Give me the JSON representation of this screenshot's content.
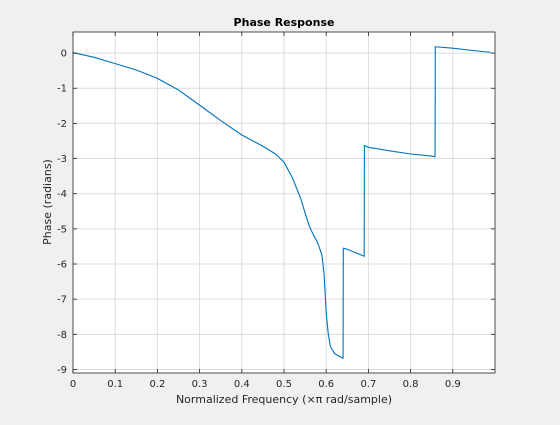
{
  "chart_data": {
    "type": "line",
    "title": "Phase Response",
    "xlabel": "Normalized Frequency (×π rad/sample)",
    "ylabel": "Phase (radians)",
    "xlim": [
      0,
      1
    ],
    "ylim": [
      -9.1,
      0.6
    ],
    "xticks": [
      0,
      0.1,
      0.2,
      0.3,
      0.4,
      0.5,
      0.6,
      0.7,
      0.8,
      0.9
    ],
    "xtick_labels": [
      "0",
      "0.1",
      "0.2",
      "0.3",
      "0.4",
      "0.5",
      "0.6",
      "0.7",
      "0.8",
      "0.9"
    ],
    "yticks": [
      0,
      -1,
      -2,
      -3,
      -4,
      -5,
      -6,
      -7,
      -8,
      -9
    ],
    "ytick_labels": [
      "0",
      "-1",
      "-2",
      "-3",
      "-4",
      "-5",
      "-6",
      "-7",
      "-8",
      "-9"
    ],
    "grid": true,
    "line_color": "#0072bd",
    "series": [
      {
        "x": [
          0,
          0.005,
          0.05,
          0.1,
          0.15,
          0.2,
          0.25,
          0.3,
          0.35,
          0.4,
          0.45,
          0.48,
          0.5,
          0.52,
          0.54,
          0.55,
          0.56,
          0.57,
          0.58,
          0.59,
          0.595,
          0.6,
          0.605,
          0.61,
          0.62,
          0.63,
          0.64,
          0.6405,
          0.65,
          0.66,
          0.67,
          0.68,
          0.69,
          0.6905,
          0.7,
          0.75,
          0.8,
          0.85,
          0.858,
          0.8585,
          0.9,
          0.95,
          0.99
        ],
        "y": [
          0.02,
          0.0,
          -0.12,
          -0.3,
          -0.48,
          -0.72,
          -1.05,
          -1.48,
          -1.92,
          -2.33,
          -2.65,
          -2.87,
          -3.1,
          -3.55,
          -4.15,
          -4.55,
          -4.92,
          -5.18,
          -5.4,
          -5.75,
          -6.3,
          -7.4,
          -8.0,
          -8.35,
          -8.55,
          -8.62,
          -8.68,
          -5.55,
          -5.58,
          -5.63,
          -5.68,
          -5.73,
          -5.78,
          -2.63,
          -2.68,
          -2.78,
          -2.87,
          -2.93,
          -2.95,
          0.18,
          0.14,
          0.07,
          0.02
        ]
      }
    ]
  }
}
